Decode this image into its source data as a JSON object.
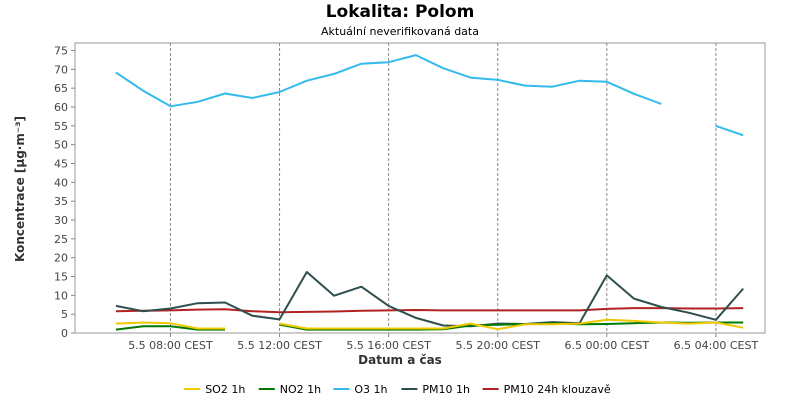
{
  "chart_data": {
    "type": "line",
    "title": "Lokalita: Polom",
    "subtitle": "Aktuální neverifikovaná data",
    "xlabel": "Datum a čas",
    "ylabel": "Koncentrace [µg·m⁻³]",
    "ylim": [
      0,
      77
    ],
    "yticks": [
      0,
      5,
      10,
      15,
      20,
      25,
      30,
      35,
      40,
      45,
      50,
      55,
      60,
      65,
      70,
      75
    ],
    "xticks": [
      "5.5 08:00 CEST",
      "5.5 12:00 CEST",
      "5.5 16:00 CEST",
      "5.5 20:00 CEST",
      "6.5 00:00 CEST",
      "6.5 04:00 CEST"
    ],
    "xtick_hours": [
      8,
      12,
      16,
      20,
      24,
      28
    ],
    "x_hours": [
      6,
      7,
      8,
      9,
      10,
      11,
      12,
      13,
      14,
      15,
      16,
      17,
      18,
      19,
      20,
      21,
      22,
      23,
      24,
      25,
      26,
      27,
      28,
      29
    ],
    "grid": "vertical dashed at x ticks",
    "legend_position": "bottom",
    "series": [
      {
        "name": "SO2 1h",
        "color": "#f0c800",
        "values": [
          2.5,
          2.8,
          2.6,
          1.2,
          1.2,
          null,
          2.5,
          1.2,
          1.2,
          1.2,
          1.2,
          1.2,
          1.2,
          2.5,
          1.0,
          2.3,
          2.3,
          2.5,
          3.5,
          3.2,
          2.8,
          2.5,
          2.8,
          1.4
        ]
      },
      {
        "name": "NO2 1h",
        "color": "#007a00",
        "values": [
          0.9,
          1.8,
          1.8,
          0.9,
          0.9,
          null,
          2.2,
          0.9,
          0.9,
          0.9,
          0.9,
          0.9,
          1.0,
          2.0,
          2.2,
          2.3,
          2.6,
          2.3,
          2.4,
          2.6,
          2.8,
          2.7,
          2.8,
          2.8
        ]
      },
      {
        "name": "O3 1h",
        "color": "#33bbee",
        "values": [
          69.2,
          64.3,
          60.2,
          61.4,
          63.6,
          62.4,
          64.0,
          67.0,
          68.8,
          71.5,
          71.9,
          73.8,
          70.3,
          67.8,
          67.2,
          65.7,
          65.4,
          67.0,
          66.7,
          63.5,
          60.8,
          null,
          55.0,
          52.5
        ]
      },
      {
        "name": "PM10 1h",
        "color": "#2f4f4f",
        "values": [
          7.2,
          5.8,
          6.5,
          7.9,
          8.1,
          4.6,
          3.6,
          16.2,
          9.9,
          12.3,
          7.2,
          4.0,
          2.0,
          1.8,
          2.5,
          2.4,
          2.9,
          2.6,
          15.3,
          9.1,
          6.9,
          5.4,
          3.5,
          11.8
        ]
      },
      {
        "name": "PM10 24h klouzavě",
        "color": "#b22222",
        "values": [
          5.8,
          5.9,
          6.0,
          6.2,
          6.3,
          5.8,
          5.5,
          5.6,
          5.7,
          5.9,
          6.0,
          6.1,
          6.0,
          6.0,
          6.0,
          6.0,
          6.0,
          6.0,
          6.4,
          6.6,
          6.6,
          6.5,
          6.5,
          6.6
        ]
      }
    ]
  }
}
